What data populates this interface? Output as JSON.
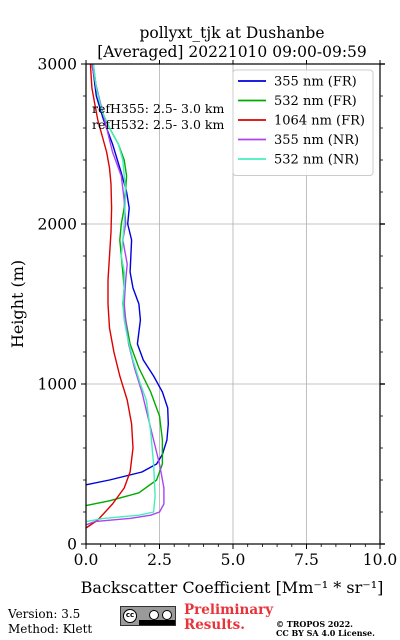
{
  "chart_data": {
    "type": "line",
    "title": "pollyxt_tjk at Dushanbe",
    "subtitle": "[Averaged] 20221010 09:00-09:59",
    "xlabel": "Backscatter Coefficient [Mm⁻¹ * sr⁻¹]",
    "ylabel": "Height (m)",
    "xlim": [
      0,
      10
    ],
    "ylim": [
      0,
      3000
    ],
    "xticks": [
      "0.0",
      "2.5",
      "5.0",
      "7.5",
      "10.0"
    ],
    "yticks": [
      "0",
      "1000",
      "2000",
      "3000"
    ],
    "grid": true,
    "legend_position": "top-right",
    "annotations": [
      "refH355:  2.5- 3.0 km",
      "refH532:  2.5- 3.0 km"
    ],
    "series": [
      {
        "name": "355 nm (FR)",
        "color": "#0000dd",
        "x": [
          0.0,
          0.8,
          1.9,
          2.4,
          2.6,
          2.75,
          2.8,
          2.78,
          2.6,
          2.3,
          1.95,
          1.75,
          1.85,
          1.8,
          1.6,
          1.5,
          1.55,
          1.42,
          1.47,
          1.38,
          1.2,
          0.9,
          0.6,
          0.35,
          0.25,
          0.2
        ],
        "y": [
          370,
          400,
          450,
          500,
          560,
          650,
          750,
          850,
          950,
          1050,
          1150,
          1250,
          1400,
          1500,
          1600,
          1700,
          1900,
          2000,
          2100,
          2200,
          2320,
          2500,
          2650,
          2800,
          2950,
          3000
        ]
      },
      {
        "name": "532 nm (FR)",
        "color": "#00aa00",
        "x": [
          0.0,
          0.8,
          1.8,
          2.4,
          2.6,
          2.6,
          2.5,
          2.2,
          1.8,
          1.5,
          1.35,
          1.25,
          1.3,
          1.25,
          1.15,
          1.2,
          1.3,
          1.38,
          1.3,
          1.1,
          0.8,
          0.55,
          0.35,
          0.25
        ],
        "y": [
          240,
          270,
          320,
          400,
          500,
          650,
          800,
          950,
          1100,
          1250,
          1400,
          1500,
          1600,
          1700,
          1900,
          2000,
          2100,
          2300,
          2400,
          2500,
          2600,
          2700,
          2850,
          3000
        ]
      },
      {
        "name": "1064 nm (FR)",
        "color": "#dd0000",
        "x": [
          0.0,
          0.4,
          0.9,
          1.3,
          1.5,
          1.6,
          1.55,
          1.4,
          1.15,
          0.95,
          0.8,
          0.75,
          0.75,
          0.8,
          0.85,
          0.87,
          0.85,
          0.8,
          0.7,
          0.55,
          0.4,
          0.3,
          0.2,
          0.15
        ],
        "y": [
          100,
          150,
          250,
          350,
          450,
          600,
          750,
          900,
          1050,
          1200,
          1350,
          1500,
          1650,
          1800,
          1950,
          2100,
          2250,
          2350,
          2450,
          2550,
          2650,
          2750,
          2850,
          3000
        ]
      },
      {
        "name": "355 nm (NR)",
        "color": "#aa44ee",
        "x": [
          0.0,
          0.3,
          1.5,
          2.2,
          2.5,
          2.65,
          2.65,
          2.5,
          2.3,
          2.1,
          1.9,
          1.65,
          1.45,
          1.35,
          1.3,
          1.35,
          1.4,
          1.25,
          1.35,
          1.3,
          1.2,
          0.9,
          0.7,
          0.5,
          0.3,
          0.2
        ],
        "y": [
          120,
          140,
          160,
          180,
          200,
          250,
          350,
          500,
          650,
          800,
          950,
          1100,
          1250,
          1400,
          1500,
          1650,
          1750,
          1900,
          2000,
          2150,
          2300,
          2450,
          2600,
          2750,
          2900,
          3000
        ]
      },
      {
        "name": "532 nm (NR)",
        "color": "#44eebb",
        "x": [
          0.0,
          0.6,
          1.8,
          2.3,
          2.35,
          2.3,
          2.2,
          2.05,
          1.85,
          1.6,
          1.4,
          1.3,
          1.25,
          1.3,
          1.3,
          1.2,
          1.3,
          1.35,
          1.3,
          1.25,
          1.1,
          0.8,
          0.55,
          0.35,
          0.25
        ],
        "y": [
          140,
          160,
          180,
          200,
          300,
          500,
          700,
          900,
          1000,
          1150,
          1300,
          1400,
          1500,
          1600,
          1700,
          1800,
          2000,
          2200,
          2300,
          2400,
          2500,
          2600,
          2700,
          2850,
          3000
        ]
      }
    ]
  },
  "footer": {
    "version": "Version: 3.5",
    "method": "Method: Klett",
    "preliminary_line1": "Preliminary",
    "preliminary_line2": "Results.",
    "copyright_line1": "© TROPOS 2022.",
    "copyright_line2": "CC BY SA 4.0 License."
  },
  "colors": {
    "preliminary": "#e8333a",
    "grid": "#b0b0b0"
  },
  "icons": {
    "license": "creative-commons-by-sa-icon"
  }
}
